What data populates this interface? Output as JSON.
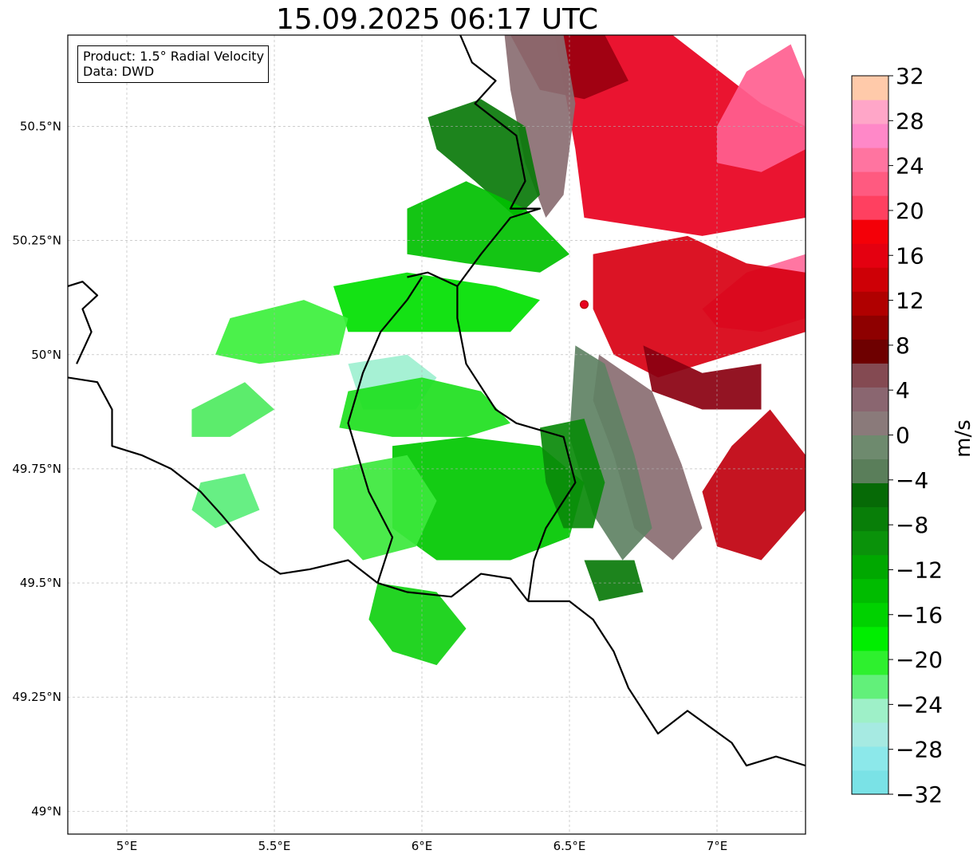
{
  "title": "15.09.2025 06:17 UTC",
  "info_box": {
    "line1": "Product: 1.5° Radial Velocity",
    "line2": "Data: DWD"
  },
  "map": {
    "projection": "PlateCarree",
    "lon_range": [
      4.8,
      7.3
    ],
    "lat_range": [
      48.95,
      50.7
    ],
    "gridlines": true,
    "lon_ticks": [
      {
        "value": 5.0,
        "label": "5°E"
      },
      {
        "value": 5.5,
        "label": "5.5°E"
      },
      {
        "value": 6.0,
        "label": "6°E"
      },
      {
        "value": 6.5,
        "label": "6.5°E"
      },
      {
        "value": 7.0,
        "label": "7°E"
      }
    ],
    "lat_ticks": [
      {
        "value": 50.5,
        "label": "50.5°N"
      },
      {
        "value": 50.25,
        "label": "50.25°N"
      },
      {
        "value": 50.0,
        "label": "50°N"
      },
      {
        "value": 49.75,
        "label": "49.75°N"
      },
      {
        "value": 49.5,
        "label": "49.5°N"
      },
      {
        "value": 49.25,
        "label": "49.25°N"
      },
      {
        "value": 49.0,
        "label": "49°N"
      }
    ],
    "radar_site": {
      "lon": 6.55,
      "lat": 50.11,
      "color": "#e8001e"
    },
    "velocity_regions": [
      {
        "name": "outbound-north-core",
        "color": "#e8001e",
        "pts": [
          [
            6.45,
            50.7
          ],
          [
            6.85,
            50.7
          ],
          [
            7.15,
            50.55
          ],
          [
            7.3,
            50.5
          ],
          [
            7.3,
            50.3
          ],
          [
            6.95,
            50.26
          ],
          [
            6.55,
            50.3
          ],
          [
            6.52,
            50.45
          ]
        ]
      },
      {
        "name": "outbound-dark-north",
        "color": "#9a0010",
        "pts": [
          [
            6.3,
            50.7
          ],
          [
            6.62,
            50.7
          ],
          [
            6.7,
            50.6
          ],
          [
            6.55,
            50.56
          ],
          [
            6.4,
            50.58
          ]
        ]
      },
      {
        "name": "outbound-pink-northeast",
        "color": "#ff6090",
        "pts": [
          [
            7.0,
            50.5
          ],
          [
            7.1,
            50.62
          ],
          [
            7.25,
            50.68
          ],
          [
            7.3,
            50.6
          ],
          [
            7.3,
            50.45
          ],
          [
            7.15,
            50.4
          ],
          [
            7.0,
            50.42
          ]
        ]
      },
      {
        "name": "outbound-pink-east",
        "color": "#ff6a9a",
        "pts": [
          [
            6.95,
            50.1
          ],
          [
            7.1,
            50.18
          ],
          [
            7.3,
            50.22
          ],
          [
            7.3,
            50.08
          ],
          [
            7.15,
            50.05
          ],
          [
            7.0,
            50.06
          ]
        ]
      },
      {
        "name": "outbound-mid-east",
        "color": "#d80012",
        "pts": [
          [
            6.58,
            50.22
          ],
          [
            6.9,
            50.26
          ],
          [
            7.1,
            50.2
          ],
          [
            7.3,
            50.18
          ],
          [
            7.3,
            50.05
          ],
          [
            7.05,
            50.0
          ],
          [
            6.8,
            49.95
          ],
          [
            6.65,
            50.0
          ],
          [
            6.58,
            50.1
          ]
        ]
      },
      {
        "name": "outbound-dark-southeast",
        "color": "#8a0010",
        "pts": [
          [
            6.75,
            50.02
          ],
          [
            6.95,
            49.96
          ],
          [
            7.15,
            49.98
          ],
          [
            7.15,
            49.88
          ],
          [
            6.95,
            49.88
          ],
          [
            6.78,
            49.92
          ]
        ]
      },
      {
        "name": "outbound-southeast-lobe",
        "color": "#c0000e",
        "pts": [
          [
            6.95,
            49.7
          ],
          [
            7.05,
            49.8
          ],
          [
            7.18,
            49.88
          ],
          [
            7.3,
            49.78
          ],
          [
            7.3,
            49.66
          ],
          [
            7.15,
            49.55
          ],
          [
            7.0,
            49.58
          ]
        ]
      },
      {
        "name": "grey-northwest-band",
        "color": "#8a6e72",
        "pts": [
          [
            6.28,
            50.7
          ],
          [
            6.48,
            50.7
          ],
          [
            6.52,
            50.55
          ],
          [
            6.48,
            50.35
          ],
          [
            6.42,
            50.3
          ],
          [
            6.35,
            50.42
          ],
          [
            6.3,
            50.58
          ]
        ]
      },
      {
        "name": "grey-south-band",
        "color": "#8a6e72",
        "pts": [
          [
            6.6,
            50.0
          ],
          [
            6.78,
            49.92
          ],
          [
            6.88,
            49.76
          ],
          [
            6.95,
            49.62
          ],
          [
            6.85,
            49.55
          ],
          [
            6.72,
            49.62
          ],
          [
            6.65,
            49.78
          ],
          [
            6.58,
            49.9
          ]
        ]
      },
      {
        "name": "grey-dark-green-band",
        "color": "#5f8264",
        "pts": [
          [
            6.52,
            50.02
          ],
          [
            6.62,
            49.98
          ],
          [
            6.72,
            49.78
          ],
          [
            6.78,
            49.62
          ],
          [
            6.68,
            49.55
          ],
          [
            6.58,
            49.65
          ],
          [
            6.5,
            49.82
          ]
        ]
      },
      {
        "name": "inbound-dark-green-northwest",
        "color": "#0a7a0a",
        "pts": [
          [
            6.02,
            50.52
          ],
          [
            6.2,
            50.56
          ],
          [
            6.35,
            50.5
          ],
          [
            6.4,
            50.35
          ],
          [
            6.32,
            50.3
          ],
          [
            6.18,
            50.38
          ],
          [
            6.05,
            50.45
          ]
        ]
      },
      {
        "name": "inbound-green-north-band",
        "color": "#00c000",
        "pts": [
          [
            5.95,
            50.32
          ],
          [
            6.15,
            50.38
          ],
          [
            6.35,
            50.32
          ],
          [
            6.5,
            50.22
          ],
          [
            6.4,
            50.18
          ],
          [
            6.15,
            50.2
          ],
          [
            5.95,
            50.22
          ]
        ]
      },
      {
        "name": "inbound-green-west-band",
        "color": "#00e000",
        "pts": [
          [
            5.7,
            50.15
          ],
          [
            5.95,
            50.18
          ],
          [
            6.25,
            50.15
          ],
          [
            6.4,
            50.12
          ],
          [
            6.3,
            50.05
          ],
          [
            6.0,
            50.05
          ],
          [
            5.75,
            50.05
          ]
        ]
      },
      {
        "name": "inbound-light-west-band",
        "color": "#3cf03c",
        "pts": [
          [
            5.35,
            50.08
          ],
          [
            5.6,
            50.12
          ],
          [
            5.75,
            50.08
          ],
          [
            5.72,
            50.0
          ],
          [
            5.45,
            49.98
          ],
          [
            5.3,
            50.0
          ]
        ]
      },
      {
        "name": "inbound-cyan-center",
        "color": "#9ef0d0",
        "pts": [
          [
            5.75,
            49.98
          ],
          [
            5.95,
            50.0
          ],
          [
            6.05,
            49.95
          ],
          [
            5.98,
            49.88
          ],
          [
            5.8,
            49.88
          ]
        ]
      },
      {
        "name": "inbound-green-center-band",
        "color": "#1ee01e",
        "pts": [
          [
            5.75,
            49.92
          ],
          [
            6.0,
            49.95
          ],
          [
            6.2,
            49.92
          ],
          [
            6.3,
            49.85
          ],
          [
            6.15,
            49.82
          ],
          [
            5.9,
            49.82
          ],
          [
            5.72,
            49.84
          ]
        ]
      },
      {
        "name": "inbound-green-south-core",
        "color": "#00c800",
        "pts": [
          [
            5.9,
            49.8
          ],
          [
            6.15,
            49.82
          ],
          [
            6.4,
            49.8
          ],
          [
            6.55,
            49.72
          ],
          [
            6.5,
            49.6
          ],
          [
            6.3,
            49.55
          ],
          [
            6.05,
            49.55
          ],
          [
            5.9,
            49.62
          ]
        ]
      },
      {
        "name": "inbound-dark-green-south",
        "color": "#0a8a0a",
        "pts": [
          [
            6.4,
            49.84
          ],
          [
            6.55,
            49.86
          ],
          [
            6.62,
            49.72
          ],
          [
            6.58,
            49.62
          ],
          [
            6.48,
            49.62
          ],
          [
            6.42,
            49.72
          ]
        ]
      },
      {
        "name": "inbound-light-southwest",
        "color": "#3ce83c",
        "pts": [
          [
            5.7,
            49.75
          ],
          [
            5.95,
            49.78
          ],
          [
            6.05,
            49.68
          ],
          [
            5.98,
            49.58
          ],
          [
            5.8,
            49.55
          ],
          [
            5.7,
            49.62
          ]
        ]
      },
      {
        "name": "inbound-green-far-south",
        "color": "#10d010",
        "pts": [
          [
            5.85,
            49.5
          ],
          [
            6.05,
            49.48
          ],
          [
            6.15,
            49.4
          ],
          [
            6.05,
            49.32
          ],
          [
            5.9,
            49.35
          ],
          [
            5.82,
            49.42
          ]
        ]
      },
      {
        "name": "inbound-dark-south-patch",
        "color": "#0a7a0a",
        "pts": [
          [
            6.55,
            49.55
          ],
          [
            6.72,
            49.55
          ],
          [
            6.75,
            49.48
          ],
          [
            6.6,
            49.46
          ]
        ]
      },
      {
        "name": "inbound-light-west-small",
        "color": "#5aee7a",
        "pts": [
          [
            5.25,
            49.72
          ],
          [
            5.4,
            49.74
          ],
          [
            5.45,
            49.66
          ],
          [
            5.3,
            49.62
          ],
          [
            5.22,
            49.66
          ]
        ]
      },
      {
        "name": "inbound-light-west-small-2",
        "color": "#4eea60",
        "pts": [
          [
            5.22,
            49.88
          ],
          [
            5.4,
            49.94
          ],
          [
            5.5,
            49.88
          ],
          [
            5.35,
            49.82
          ],
          [
            5.22,
            49.82
          ]
        ]
      }
    ],
    "borders": [
      {
        "name": "border-germany-west",
        "lw": 2.2,
        "pts": [
          [
            6.13,
            50.7
          ],
          [
            6.17,
            50.64
          ],
          [
            6.25,
            50.6
          ],
          [
            6.18,
            50.55
          ],
          [
            6.32,
            50.48
          ],
          [
            6.35,
            50.38
          ],
          [
            6.3,
            50.32
          ],
          [
            6.4,
            50.32
          ],
          [
            6.3,
            50.3
          ],
          [
            6.2,
            50.22
          ],
          [
            6.12,
            50.15
          ],
          [
            6.12,
            50.08
          ],
          [
            6.15,
            49.98
          ],
          [
            6.25,
            49.88
          ],
          [
            6.32,
            49.85
          ],
          [
            6.48,
            49.82
          ],
          [
            6.52,
            49.72
          ],
          [
            6.42,
            49.62
          ],
          [
            6.38,
            49.55
          ],
          [
            6.36,
            49.46
          ]
        ]
      },
      {
        "name": "border-belgium-lux",
        "lw": 2.2,
        "pts": [
          [
            6.0,
            50.17
          ],
          [
            5.95,
            50.12
          ],
          [
            5.86,
            50.05
          ],
          [
            5.8,
            49.96
          ],
          [
            5.75,
            49.85
          ],
          [
            5.82,
            49.7
          ],
          [
            5.9,
            49.6
          ],
          [
            5.85,
            49.5
          ]
        ]
      },
      {
        "name": "border-lux-north",
        "lw": 2.2,
        "pts": [
          [
            5.95,
            50.17
          ],
          [
            6.02,
            50.18
          ],
          [
            6.12,
            50.15
          ]
        ]
      },
      {
        "name": "border-lux-south",
        "lw": 2.2,
        "pts": [
          [
            5.85,
            49.5
          ],
          [
            5.95,
            49.48
          ],
          [
            6.1,
            49.47
          ],
          [
            6.2,
            49.52
          ],
          [
            6.3,
            49.51
          ],
          [
            6.36,
            49.46
          ]
        ]
      },
      {
        "name": "border-france-belgium",
        "lw": 2.2,
        "pts": [
          [
            4.8,
            49.95
          ],
          [
            4.9,
            49.94
          ],
          [
            4.95,
            49.88
          ],
          [
            4.95,
            49.8
          ],
          [
            5.05,
            49.78
          ],
          [
            5.15,
            49.75
          ],
          [
            5.25,
            49.7
          ],
          [
            5.32,
            49.65
          ],
          [
            5.45,
            49.55
          ],
          [
            5.52,
            49.52
          ],
          [
            5.62,
            49.53
          ],
          [
            5.75,
            49.55
          ],
          [
            5.85,
            49.5
          ]
        ]
      },
      {
        "name": "border-france-east",
        "lw": 2.2,
        "pts": [
          [
            6.36,
            49.46
          ],
          [
            6.5,
            49.46
          ],
          [
            6.58,
            49.42
          ],
          [
            6.65,
            49.35
          ],
          [
            6.7,
            49.27
          ],
          [
            6.8,
            49.17
          ],
          [
            6.9,
            49.22
          ],
          [
            7.05,
            49.15
          ],
          [
            7.1,
            49.1
          ],
          [
            7.2,
            49.12
          ],
          [
            7.3,
            49.1
          ]
        ]
      },
      {
        "name": "border-northwest-coast",
        "lw": 2.2,
        "pts": [
          [
            4.8,
            50.15
          ],
          [
            4.85,
            50.16
          ],
          [
            4.9,
            50.13
          ],
          [
            4.85,
            50.1
          ],
          [
            4.88,
            50.05
          ],
          [
            4.83,
            49.98
          ]
        ]
      }
    ]
  },
  "colorbar": {
    "label": "m/s",
    "min": -32,
    "max": 32,
    "step": 4,
    "tick_labels": [
      "32",
      "28",
      "24",
      "20",
      "16",
      "12",
      "8",
      "4",
      "0",
      "−4",
      "−8",
      "−12",
      "−16",
      "−20",
      "−24",
      "−28",
      "−32"
    ],
    "colors_bottom_to_top": [
      "#7ae2e6",
      "#8ce8ea",
      "#a6eae2",
      "#9ef0c8",
      "#62f07a",
      "#2ef02e",
      "#00ee00",
      "#00d200",
      "#00bc00",
      "#00a800",
      "#0a920a",
      "#087e08",
      "#066a06",
      "#5a7e5a",
      "#6e8a6e",
      "#8a7a7a",
      "#8a6670",
      "#844a52",
      "#6e0000",
      "#8e0000",
      "#b00000",
      "#ce0006",
      "#e40010",
      "#f40008",
      "#ff4060",
      "#ff5a80",
      "#ff74a0",
      "#ff88c8",
      "#ffa6c8",
      "#ffcaaa"
    ]
  }
}
